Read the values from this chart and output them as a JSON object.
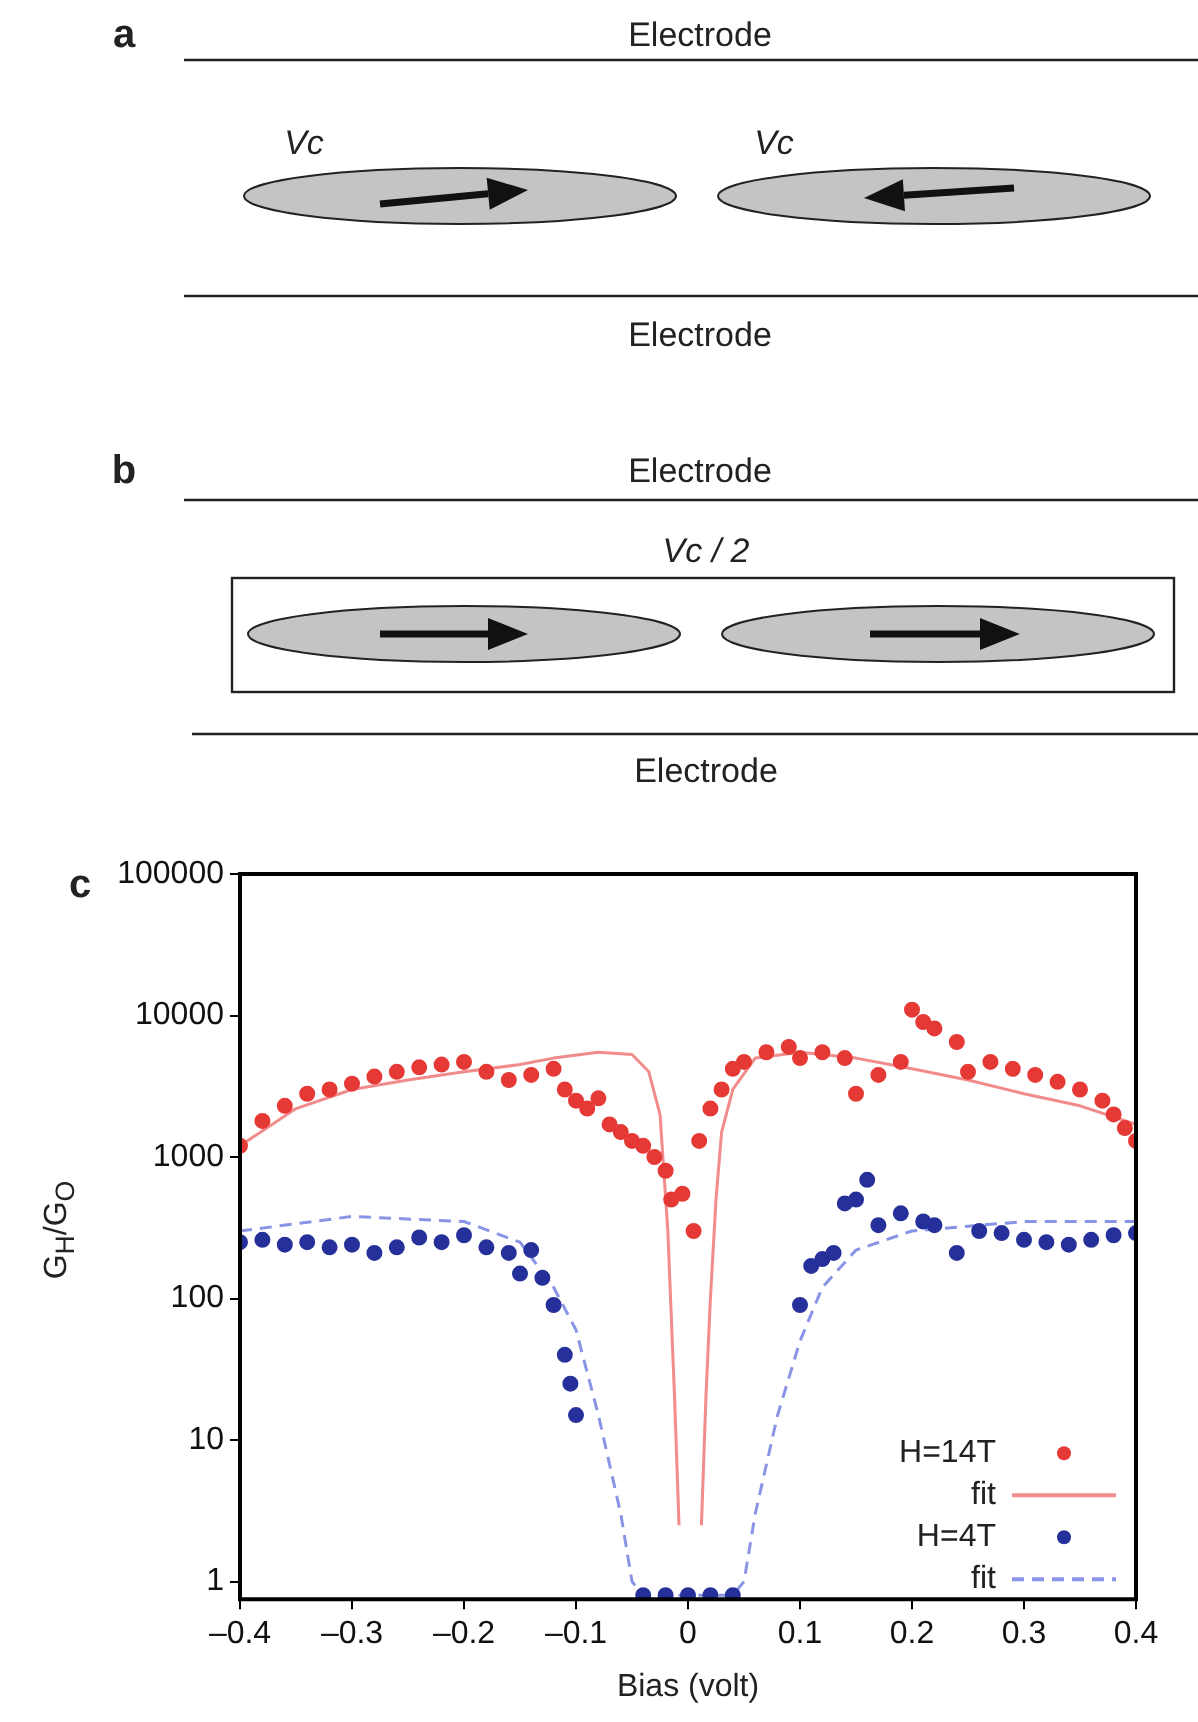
{
  "chart_data": {
    "type": "scatter",
    "xlabel": "Bias (volt)",
    "ylabel": "G$_{H}$/G$_{O}$",
    "annotations": [
      "a",
      "Electrode",
      "Vc",
      "Vc",
      "Electrode",
      "b",
      "Electrode",
      "Vc / 2",
      "Electrode",
      "c"
    ],
    "xlim": [
      -0.4,
      0.4
    ],
    "xticks": [
      {
        "value": -0.4,
        "label": "–0.4"
      },
      {
        "value": -0.3,
        "label": "–0.3"
      },
      {
        "value": -0.2,
        "label": "–0.2"
      },
      {
        "value": -0.1,
        "label": "–0.1"
      },
      0,
      0.1,
      0.2,
      0.3,
      0.4
    ],
    "ylim": [
      0.75,
      100000
    ],
    "yticks": [
      1,
      10,
      100,
      1000,
      10000,
      100000
    ],
    "log": "y",
    "grid": false,
    "legend": "bottom right",
    "series": [
      {
        "name": "H=14T",
        "type": "scatter",
        "marker": "circle",
        "color": "#e53935",
        "x": [
          -0.4,
          -0.38,
          -0.36,
          -0.34,
          -0.32,
          -0.3,
          -0.28,
          -0.26,
          -0.24,
          -0.22,
          -0.2,
          -0.18,
          -0.16,
          -0.14,
          -0.12,
          -0.11,
          -0.1,
          -0.09,
          -0.08,
          -0.07,
          -0.06,
          -0.05,
          -0.04,
          -0.03,
          -0.02,
          -0.015,
          -0.005,
          0.005,
          0.01,
          0.02,
          0.03,
          0.04,
          0.05,
          0.07,
          0.09,
          0.1,
          0.12,
          0.14,
          0.15,
          0.17,
          0.19,
          0.2,
          0.21,
          0.22,
          0.24,
          0.25,
          0.27,
          0.29,
          0.31,
          0.33,
          0.35,
          0.37,
          0.38,
          0.39,
          0.4
        ],
        "values": [
          1200,
          1800,
          2300,
          2800,
          3000,
          3300,
          3700,
          4000,
          4300,
          4500,
          4700,
          4000,
          3500,
          3800,
          4200,
          3000,
          2500,
          2200,
          2600,
          1700,
          1500,
          1300,
          1200,
          1000,
          800,
          500,
          550,
          300,
          1300,
          2200,
          3000,
          4200,
          4700,
          5500,
          6000,
          5000,
          5500,
          5000,
          2800,
          3800,
          4700,
          11000,
          9000,
          8100,
          6500,
          4000,
          4700,
          4200,
          3800,
          3400,
          3000,
          2500,
          2000,
          1600,
          1300
        ]
      },
      {
        "name": "fit",
        "type": "line",
        "marker": "none",
        "line_style": "solid",
        "color": "#f28b8b",
        "x": [
          -0.4,
          -0.35,
          -0.3,
          -0.25,
          -0.2,
          -0.15,
          -0.12,
          -0.08,
          -0.05,
          -0.035,
          -0.025,
          -0.018,
          -0.012,
          -0.008,
          0.0,
          0.012,
          0.016,
          0.02,
          0.025,
          0.03,
          0.04,
          0.06,
          0.1,
          0.15,
          0.2,
          0.25,
          0.3,
          0.35,
          0.4
        ],
        "values": [
          1200,
          2200,
          3000,
          3500,
          4000,
          4500,
          5000,
          5500,
          5300,
          4000,
          2000,
          300,
          20,
          2.5,
          null,
          2.5,
          20,
          100,
          500,
          1500,
          3000,
          5000,
          5500,
          5000,
          4200,
          3500,
          2800,
          2300,
          1700
        ]
      },
      {
        "name": "H=4T",
        "type": "scatter",
        "marker": "circle",
        "color": "#26309a",
        "x": [
          -0.4,
          -0.38,
          -0.36,
          -0.34,
          -0.32,
          -0.3,
          -0.28,
          -0.26,
          -0.24,
          -0.22,
          -0.2,
          -0.18,
          -0.16,
          -0.15,
          -0.14,
          -0.13,
          -0.12,
          -0.11,
          -0.105,
          -0.1,
          -0.04,
          -0.02,
          0,
          0.02,
          0.04,
          0.1,
          0.11,
          0.12,
          0.13,
          0.14,
          0.15,
          0.16,
          0.17,
          0.19,
          0.21,
          0.22,
          0.24,
          0.26,
          0.28,
          0.3,
          0.32,
          0.34,
          0.36,
          0.38,
          0.4
        ],
        "values": [
          250,
          260,
          240,
          250,
          230,
          240,
          210,
          230,
          270,
          250,
          280,
          230,
          210,
          150,
          220,
          140,
          90,
          40,
          25,
          15,
          0.8,
          0.8,
          0.8,
          0.8,
          0.8,
          90,
          170,
          190,
          210,
          470,
          500,
          690,
          330,
          400,
          350,
          330,
          210,
          300,
          290,
          260,
          250,
          240,
          260,
          280,
          290
        ]
      },
      {
        "name": "fit",
        "type": "line",
        "marker": "none",
        "line_style": "dashed",
        "color": "#8a94e6",
        "x": [
          -0.4,
          -0.3,
          -0.2,
          -0.15,
          -0.12,
          -0.1,
          -0.08,
          -0.06,
          -0.05,
          -0.04,
          0,
          0.04,
          0.05,
          0.06,
          0.08,
          0.1,
          0.12,
          0.15,
          0.2,
          0.3,
          0.4
        ],
        "values": [
          300,
          380,
          350,
          250,
          120,
          60,
          15,
          3,
          1,
          0.8,
          0.8,
          0.8,
          1,
          3,
          15,
          50,
          120,
          220,
          300,
          350,
          350
        ]
      }
    ]
  }
}
